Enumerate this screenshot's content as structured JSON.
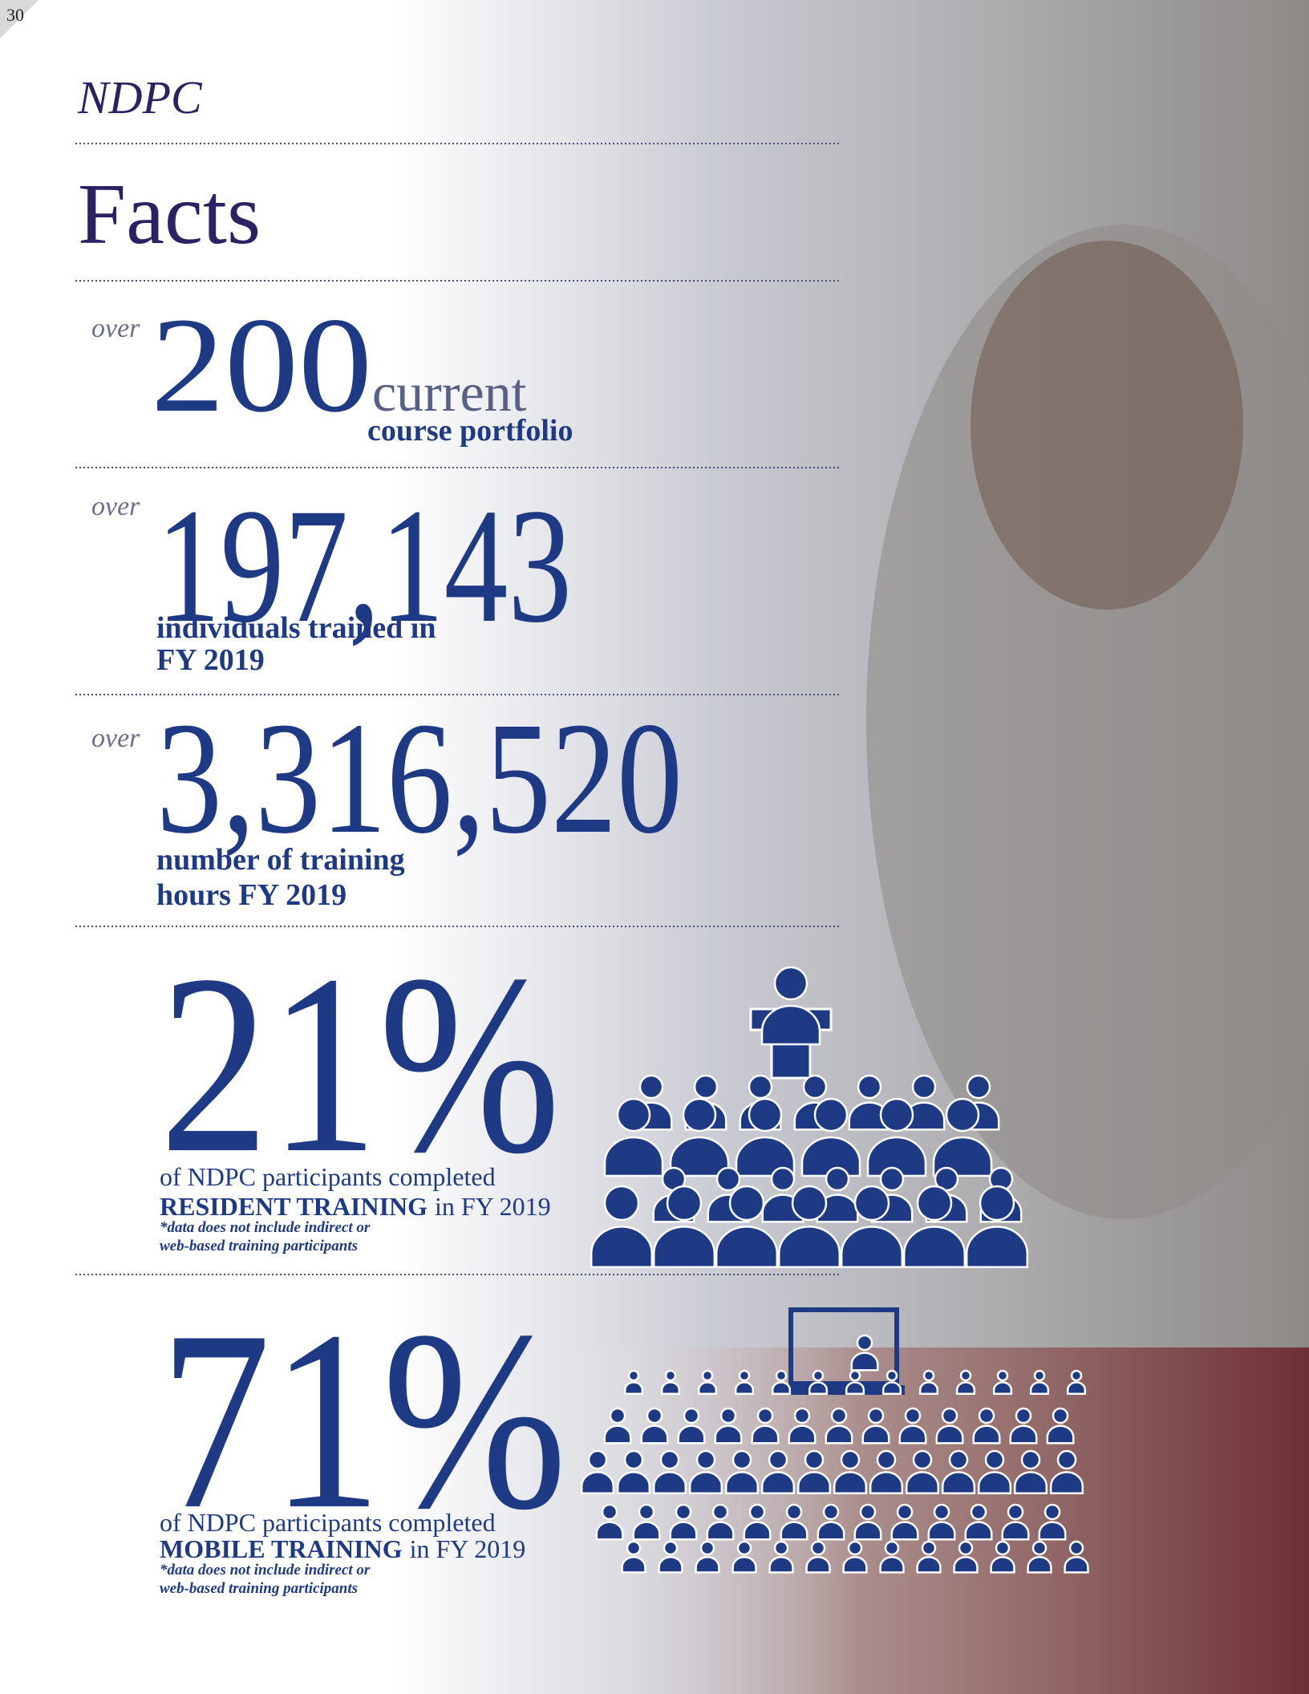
{
  "page_number": "30",
  "header": {
    "subtitle": "NDPC",
    "title": "Facts"
  },
  "facts": [
    {
      "prefix": "over",
      "number": "200",
      "unit": "current",
      "caption": [
        "course portfolio"
      ]
    },
    {
      "prefix": "over",
      "number": "197,143",
      "caption": [
        "individuals trained in",
        "FY 2019"
      ]
    },
    {
      "prefix": "over",
      "number": "3,316,520",
      "caption": [
        "number of training",
        "hours FY 2019"
      ]
    }
  ],
  "stats": [
    {
      "number": "21%",
      "caption": "of NDPC participants completed",
      "highlight": "RESIDENT TRAINING",
      "suffix": "in FY 2019",
      "note": [
        "*data does not include indirect or",
        "web-based training participants"
      ]
    },
    {
      "number": "71%",
      "caption": "of NDPC participants completed",
      "highlight": "MOBILE TRAINING",
      "suffix": "in FY 2019",
      "note": [
        "*data does not include indirect or",
        "web-based training participants"
      ]
    }
  ]
}
